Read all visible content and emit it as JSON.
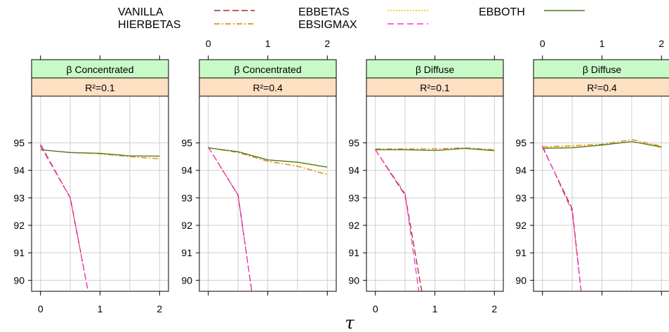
{
  "chart_data": {
    "type": "line",
    "xlabel": "τ",
    "ylabel": "",
    "xlim": [
      -0.15,
      2.15
    ],
    "ylim": [
      89.6,
      96.7
    ],
    "x_ticks": [
      0,
      1,
      2
    ],
    "y_ticks": [
      90,
      91,
      92,
      93,
      94,
      95
    ],
    "grid": true,
    "legend_position": "top",
    "legend": [
      {
        "name": "VANILLA",
        "color": "#a52a2a",
        "dash": "9,4"
      },
      {
        "name": "HIERBETAS",
        "color": "#e07b00",
        "dash": "8,3,2,3"
      },
      {
        "name": "EBBETAS",
        "color": "#f2c300",
        "dash": "2,2"
      },
      {
        "name": "EBSIGMAX",
        "color": "#ff33cc",
        "dash": "9,5"
      },
      {
        "name": "EBBOTH",
        "color": "#4a7a2a",
        "dash": ""
      }
    ],
    "panels": [
      {
        "strip_top": "β Concentrated",
        "strip_bottom": "R²=0.1",
        "series": [
          {
            "name": "VANILLA",
            "x": [
              0,
              0.5,
              0.8
            ],
            "y": [
              94.9,
              93.0,
              89.6
            ]
          },
          {
            "name": "EBSIGMAX",
            "x": [
              0,
              0.5,
              0.8
            ],
            "y": [
              94.95,
              93.0,
              89.6
            ]
          },
          {
            "name": "HIERBETAS",
            "x": [
              0,
              0.5,
              1,
              1.5,
              2
            ],
            "y": [
              94.75,
              94.65,
              94.6,
              94.5,
              94.42
            ]
          },
          {
            "name": "EBBETAS",
            "x": [
              0,
              0.5,
              1,
              1.5,
              2
            ],
            "y": [
              94.75,
              94.65,
              94.6,
              94.53,
              94.5
            ]
          },
          {
            "name": "EBBOTH",
            "x": [
              0,
              0.5,
              1,
              1.5,
              2
            ],
            "y": [
              94.75,
              94.65,
              94.62,
              94.53,
              94.52
            ]
          }
        ]
      },
      {
        "strip_top": "β Concentrated",
        "strip_bottom": "R²=0.4",
        "series": [
          {
            "name": "VANILLA",
            "x": [
              0,
              0.5,
              0.73
            ],
            "y": [
              94.85,
              93.1,
              89.6
            ]
          },
          {
            "name": "EBSIGMAX",
            "x": [
              0,
              0.5,
              0.73
            ],
            "y": [
              94.85,
              93.1,
              89.6
            ]
          },
          {
            "name": "HIERBETAS",
            "x": [
              0,
              0.5,
              1,
              1.5,
              2
            ],
            "y": [
              94.82,
              94.65,
              94.33,
              94.15,
              93.85
            ]
          },
          {
            "name": "EBBETAS",
            "x": [
              0,
              0.5,
              1,
              1.5,
              2
            ],
            "y": [
              94.82,
              94.68,
              94.38,
              94.28,
              94.1
            ]
          },
          {
            "name": "EBBOTH",
            "x": [
              0,
              0.5,
              1,
              1.5,
              2
            ],
            "y": [
              94.82,
              94.68,
              94.38,
              94.3,
              94.12
            ]
          }
        ]
      },
      {
        "strip_top": "β Diffuse",
        "strip_bottom": "R²=0.1",
        "series": [
          {
            "name": "VANILLA",
            "x": [
              0,
              0.5,
              0.78
            ],
            "y": [
              94.75,
              93.1,
              89.6
            ]
          },
          {
            "name": "EBSIGMAX",
            "x": [
              0,
              0.5,
              0.73
            ],
            "y": [
              94.75,
              93.15,
              89.6
            ]
          },
          {
            "name": "HIERBETAS",
            "x": [
              0,
              0.5,
              1,
              1.5,
              2
            ],
            "y": [
              94.78,
              94.78,
              94.78,
              94.82,
              94.75
            ]
          },
          {
            "name": "EBBETAS",
            "x": [
              0,
              0.5,
              1,
              1.5,
              2
            ],
            "y": [
              94.75,
              94.75,
              94.72,
              94.8,
              94.7
            ]
          },
          {
            "name": "EBBOTH",
            "x": [
              0,
              0.5,
              1,
              1.5,
              2
            ],
            "y": [
              94.75,
              94.75,
              94.72,
              94.8,
              94.72
            ]
          }
        ]
      },
      {
        "strip_top": "β Diffuse",
        "strip_bottom": "R²=0.4",
        "series": [
          {
            "name": "VANILLA",
            "x": [
              0,
              0.5,
              0.65
            ],
            "y": [
              94.85,
              92.6,
              89.6
            ]
          },
          {
            "name": "EBSIGMAX",
            "x": [
              0,
              0.5,
              0.65
            ],
            "y": [
              94.9,
              92.5,
              89.6
            ]
          },
          {
            "name": "HIERBETAS",
            "x": [
              0,
              0.5,
              1,
              1.5,
              2
            ],
            "y": [
              94.85,
              94.9,
              94.95,
              95.12,
              94.88
            ]
          },
          {
            "name": "EBBETAS",
            "x": [
              0,
              0.5,
              1,
              1.5,
              2
            ],
            "y": [
              94.82,
              94.85,
              94.92,
              95.05,
              94.82
            ]
          },
          {
            "name": "EBBOTH",
            "x": [
              0,
              0.5,
              1,
              1.5,
              2
            ],
            "y": [
              94.8,
              94.82,
              94.92,
              95.05,
              94.85
            ]
          }
        ]
      }
    ]
  }
}
